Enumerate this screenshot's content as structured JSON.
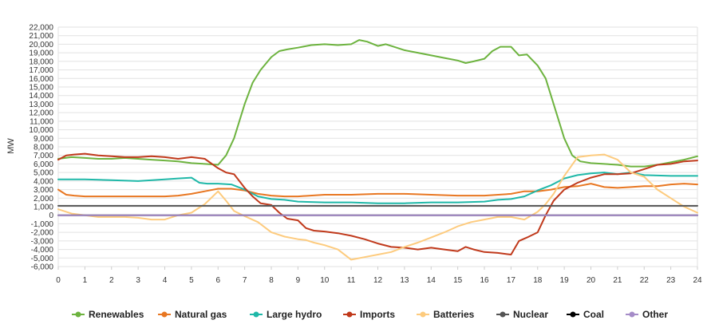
{
  "chart_data": {
    "type": "line",
    "title": "",
    "xlabel": "",
    "ylabel": "MW",
    "xlim": [
      0,
      24
    ],
    "ylim": [
      -6000,
      22000
    ],
    "x_ticks": [
      0,
      1,
      2,
      3,
      4,
      5,
      6,
      7,
      8,
      9,
      10,
      11,
      12,
      13,
      14,
      15,
      16,
      17,
      18,
      19,
      20,
      21,
      22,
      23,
      24
    ],
    "x_tick_labels": [
      "0",
      "1",
      "2",
      "3",
      "4",
      "5",
      "6",
      "7",
      "8",
      "9",
      "10",
      "11",
      "12",
      "13",
      "14",
      "15",
      "16",
      "17",
      "18",
      "19",
      "20",
      "21",
      "22",
      "23",
      "24"
    ],
    "y_ticks": [
      22000,
      21000,
      20000,
      19000,
      18000,
      17000,
      16000,
      15000,
      14000,
      13000,
      12000,
      11000,
      10000,
      9000,
      8000,
      7000,
      6000,
      5000,
      4000,
      3000,
      2000,
      1000,
      0,
      -1000,
      -2000,
      -3000,
      -4000,
      -5000,
      -6000
    ],
    "y_tick_labels": [
      "22,000",
      "21,000",
      "20,000",
      "19,000",
      "18,000",
      "17,000",
      "16,000",
      "15,000",
      "14,000",
      "13,000",
      "12,000",
      "11,000",
      "10,000",
      "9,000",
      "8,000",
      "7,000",
      "6,000",
      "5,000",
      "4,000",
      "3,000",
      "2,000",
      "1,000",
      "0",
      "-1,000",
      "-2,000",
      "-3,000",
      "-4,000",
      "-5,000",
      "-6,000"
    ],
    "grid": "horizontal",
    "legend_position": "bottom",
    "series": [
      {
        "name": "Renewables",
        "color": "#6DB33F",
        "points": [
          [
            0,
            6600
          ],
          [
            0.5,
            6800
          ],
          [
            1,
            6700
          ],
          [
            1.5,
            6600
          ],
          [
            2,
            6600
          ],
          [
            2.5,
            6700
          ],
          [
            3,
            6600
          ],
          [
            3.5,
            6500
          ],
          [
            4,
            6400
          ],
          [
            4.5,
            6300
          ],
          [
            5,
            6100
          ],
          [
            5.5,
            6000
          ],
          [
            6,
            5900
          ],
          [
            6.3,
            7000
          ],
          [
            6.6,
            9000
          ],
          [
            7,
            13000
          ],
          [
            7.3,
            15500
          ],
          [
            7.6,
            17000
          ],
          [
            8,
            18500
          ],
          [
            8.3,
            19200
          ],
          [
            8.6,
            19400
          ],
          [
            9,
            19600
          ],
          [
            9.5,
            19900
          ],
          [
            10,
            20000
          ],
          [
            10.5,
            19900
          ],
          [
            11,
            20000
          ],
          [
            11.3,
            20500
          ],
          [
            11.6,
            20300
          ],
          [
            12,
            19800
          ],
          [
            12.3,
            20000
          ],
          [
            12.6,
            19700
          ],
          [
            13,
            19300
          ],
          [
            13.5,
            19000
          ],
          [
            14,
            18700
          ],
          [
            14.5,
            18400
          ],
          [
            15,
            18100
          ],
          [
            15.3,
            17800
          ],
          [
            15.6,
            18000
          ],
          [
            16,
            18300
          ],
          [
            16.3,
            19200
          ],
          [
            16.6,
            19700
          ],
          [
            17,
            19700
          ],
          [
            17.3,
            18700
          ],
          [
            17.6,
            18800
          ],
          [
            18,
            17500
          ],
          [
            18.3,
            16000
          ],
          [
            18.6,
            13000
          ],
          [
            19,
            9000
          ],
          [
            19.3,
            7000
          ],
          [
            19.6,
            6300
          ],
          [
            20,
            6100
          ],
          [
            20.5,
            6000
          ],
          [
            21,
            5900
          ],
          [
            21.5,
            5700
          ],
          [
            22,
            5700
          ],
          [
            22.5,
            5900
          ],
          [
            23,
            6200
          ],
          [
            23.5,
            6500
          ],
          [
            24,
            6900
          ]
        ]
      },
      {
        "name": "Natural gas",
        "color": "#E87722",
        "points": [
          [
            0,
            3000
          ],
          [
            0.3,
            2400
          ],
          [
            0.6,
            2300
          ],
          [
            1,
            2200
          ],
          [
            2,
            2200
          ],
          [
            3,
            2200
          ],
          [
            4,
            2200
          ],
          [
            4.5,
            2300
          ],
          [
            5,
            2500
          ],
          [
            5.5,
            2800
          ],
          [
            6,
            3100
          ],
          [
            6.5,
            3100
          ],
          [
            7,
            2900
          ],
          [
            7.5,
            2500
          ],
          [
            8,
            2300
          ],
          [
            8.5,
            2200
          ],
          [
            9,
            2200
          ],
          [
            10,
            2400
          ],
          [
            11,
            2400
          ],
          [
            12,
            2500
          ],
          [
            13,
            2500
          ],
          [
            14,
            2400
          ],
          [
            15,
            2300
          ],
          [
            16,
            2300
          ],
          [
            17,
            2500
          ],
          [
            17.5,
            2800
          ],
          [
            18,
            2800
          ],
          [
            18.5,
            3000
          ],
          [
            19,
            3300
          ],
          [
            19.5,
            3400
          ],
          [
            20,
            3700
          ],
          [
            20.5,
            3300
          ],
          [
            21,
            3200
          ],
          [
            21.5,
            3300
          ],
          [
            22,
            3400
          ],
          [
            22.5,
            3400
          ],
          [
            23,
            3600
          ],
          [
            23.5,
            3700
          ],
          [
            24,
            3600
          ]
        ]
      },
      {
        "name": "Large hydro",
        "color": "#1FB8A8",
        "points": [
          [
            0,
            4200
          ],
          [
            1,
            4200
          ],
          [
            2,
            4100
          ],
          [
            3,
            4000
          ],
          [
            4,
            4200
          ],
          [
            4.5,
            4300
          ],
          [
            5,
            4400
          ],
          [
            5.3,
            3800
          ],
          [
            5.6,
            3700
          ],
          [
            6,
            3700
          ],
          [
            6.5,
            3600
          ],
          [
            7,
            3000
          ],
          [
            7.5,
            2200
          ],
          [
            8,
            1900
          ],
          [
            8.5,
            1800
          ],
          [
            9,
            1600
          ],
          [
            10,
            1500
          ],
          [
            11,
            1500
          ],
          [
            12,
            1400
          ],
          [
            13,
            1400
          ],
          [
            14,
            1500
          ],
          [
            15,
            1500
          ],
          [
            16,
            1600
          ],
          [
            16.5,
            1800
          ],
          [
            17,
            1900
          ],
          [
            17.5,
            2200
          ],
          [
            18,
            2900
          ],
          [
            18.5,
            3500
          ],
          [
            19,
            4300
          ],
          [
            19.5,
            4700
          ],
          [
            20,
            4900
          ],
          [
            20.5,
            5000
          ],
          [
            21,
            4800
          ],
          [
            21.5,
            5000
          ],
          [
            22,
            4700
          ],
          [
            23,
            4600
          ],
          [
            24,
            4600
          ]
        ]
      },
      {
        "name": "Imports",
        "color": "#C0391B",
        "points": [
          [
            0,
            6500
          ],
          [
            0.3,
            7000
          ],
          [
            0.6,
            7100
          ],
          [
            1,
            7200
          ],
          [
            1.5,
            7000
          ],
          [
            2,
            6900
          ],
          [
            2.5,
            6800
          ],
          [
            3,
            6800
          ],
          [
            3.5,
            6900
          ],
          [
            4,
            6800
          ],
          [
            4.5,
            6600
          ],
          [
            5,
            6800
          ],
          [
            5.5,
            6600
          ],
          [
            6,
            5500
          ],
          [
            6.3,
            5000
          ],
          [
            6.6,
            4800
          ],
          [
            7,
            3200
          ],
          [
            7.3,
            2200
          ],
          [
            7.6,
            1400
          ],
          [
            8,
            1200
          ],
          [
            8.3,
            300
          ],
          [
            8.6,
            -400
          ],
          [
            9,
            -600
          ],
          [
            9.3,
            -1500
          ],
          [
            9.6,
            -1800
          ],
          [
            10,
            -1900
          ],
          [
            10.5,
            -2100
          ],
          [
            11,
            -2400
          ],
          [
            11.5,
            -2800
          ],
          [
            12,
            -3300
          ],
          [
            12.5,
            -3700
          ],
          [
            13,
            -3800
          ],
          [
            13.5,
            -4000
          ],
          [
            14,
            -3800
          ],
          [
            14.5,
            -4000
          ],
          [
            15,
            -4200
          ],
          [
            15.3,
            -3700
          ],
          [
            15.6,
            -4000
          ],
          [
            16,
            -4300
          ],
          [
            16.5,
            -4400
          ],
          [
            17,
            -4600
          ],
          [
            17.3,
            -3000
          ],
          [
            17.6,
            -2600
          ],
          [
            18,
            -2000
          ],
          [
            18.3,
            0
          ],
          [
            18.6,
            1700
          ],
          [
            19,
            3000
          ],
          [
            19.5,
            3800
          ],
          [
            20,
            4400
          ],
          [
            20.5,
            4800
          ],
          [
            21,
            4800
          ],
          [
            21.5,
            4900
          ],
          [
            22,
            5400
          ],
          [
            22.5,
            5900
          ],
          [
            23,
            6000
          ],
          [
            23.5,
            6300
          ],
          [
            24,
            6400
          ]
        ]
      },
      {
        "name": "Batteries",
        "color": "#FDCB7E",
        "points": [
          [
            0,
            700
          ],
          [
            0.5,
            200
          ],
          [
            1,
            0
          ],
          [
            1.5,
            -200
          ],
          [
            2,
            -200
          ],
          [
            2.5,
            -200
          ],
          [
            3,
            -300
          ],
          [
            3.5,
            -500
          ],
          [
            4,
            -500
          ],
          [
            4.5,
            0
          ],
          [
            5,
            300
          ],
          [
            5.5,
            1300
          ],
          [
            6,
            2800
          ],
          [
            6.3,
            1700
          ],
          [
            6.6,
            500
          ],
          [
            7,
            -100
          ],
          [
            7.5,
            -800
          ],
          [
            8,
            -2000
          ],
          [
            8.5,
            -2500
          ],
          [
            9,
            -2800
          ],
          [
            9.3,
            -2900
          ],
          [
            9.6,
            -3200
          ],
          [
            10,
            -3500
          ],
          [
            10.5,
            -4000
          ],
          [
            11,
            -5200
          ],
          [
            11.5,
            -4900
          ],
          [
            12,
            -4600
          ],
          [
            12.5,
            -4300
          ],
          [
            13,
            -3700
          ],
          [
            13.5,
            -3200
          ],
          [
            14,
            -2600
          ],
          [
            14.5,
            -2000
          ],
          [
            15,
            -1300
          ],
          [
            15.5,
            -800
          ],
          [
            16,
            -500
          ],
          [
            16.5,
            -200
          ],
          [
            17,
            -200
          ],
          [
            17.5,
            -500
          ],
          [
            18,
            400
          ],
          [
            18.3,
            1300
          ],
          [
            18.6,
            2500
          ],
          [
            19,
            4600
          ],
          [
            19.5,
            6800
          ],
          [
            20,
            7000
          ],
          [
            20.5,
            7100
          ],
          [
            21,
            6500
          ],
          [
            21.5,
            5000
          ],
          [
            22,
            4500
          ],
          [
            22.5,
            3000
          ],
          [
            23,
            2000
          ],
          [
            23.5,
            1000
          ],
          [
            24,
            300
          ]
        ]
      },
      {
        "name": "Nuclear",
        "color": "#555555",
        "points": [
          [
            0,
            1100
          ],
          [
            24,
            1100
          ]
        ]
      },
      {
        "name": "Coal",
        "color": "#000000",
        "points": [
          [
            0,
            0
          ],
          [
            24,
            0
          ]
        ]
      },
      {
        "name": "Other",
        "color": "#A58CC8",
        "points": [
          [
            0,
            0
          ],
          [
            24,
            0
          ]
        ]
      }
    ]
  }
}
